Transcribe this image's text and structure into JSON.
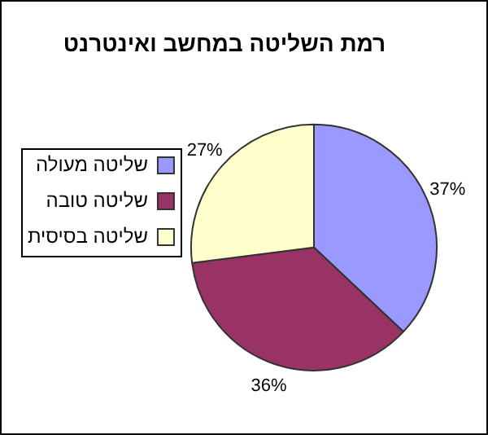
{
  "chart_data": {
    "type": "pie",
    "title": "רמת השליטה במחשב ואינטרנט",
    "categories": [
      "שליטה מעולה",
      "שליטה טובה",
      "שליטה בסיסית"
    ],
    "values": [
      37,
      36,
      27
    ],
    "colors": [
      "#9999ff",
      "#993366",
      "#ffffcc"
    ],
    "value_labels": [
      "37%",
      "36%",
      "27%"
    ],
    "legend": "left"
  }
}
